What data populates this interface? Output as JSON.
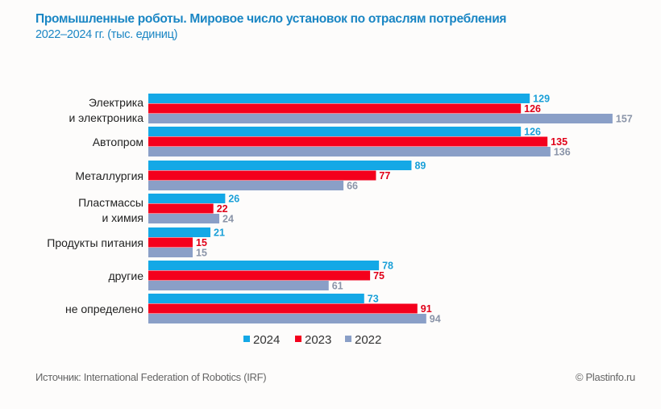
{
  "chart_data": {
    "type": "bar",
    "orientation": "horizontal",
    "title": "Промышленные роботы. Мировое число установок по отраслям потребления",
    "subtitle": "2022–2024 гг. (тыс. единиц)",
    "categories": [
      [
        "Электрика",
        "и электроника"
      ],
      [
        "Автопром"
      ],
      [
        "Металлургия"
      ],
      [
        "Пластмассы",
        "и химия"
      ],
      [
        "Продукты питания"
      ],
      [
        "другие"
      ],
      [
        "не определено"
      ]
    ],
    "series": [
      {
        "name": "2024",
        "color": "#14a8e6",
        "label_color": "#1aa0d8",
        "values": [
          129,
          126,
          89,
          26,
          21,
          78,
          73
        ]
      },
      {
        "name": "2023",
        "color": "#f4001c",
        "label_color": "#e00018",
        "values": [
          126,
          135,
          77,
          22,
          15,
          75,
          91
        ]
      },
      {
        "name": "2022",
        "color": "#8a9fc7",
        "label_color": "#8a94a8",
        "values": [
          157,
          136,
          66,
          24,
          15,
          61,
          94
        ]
      }
    ],
    "xlim": [
      0,
      160
    ],
    "grid": false,
    "legend": "bottom-center",
    "source": "Источник:  International Federation of Robotics (IRF)",
    "copyright": "© Plastinfo.ru"
  }
}
